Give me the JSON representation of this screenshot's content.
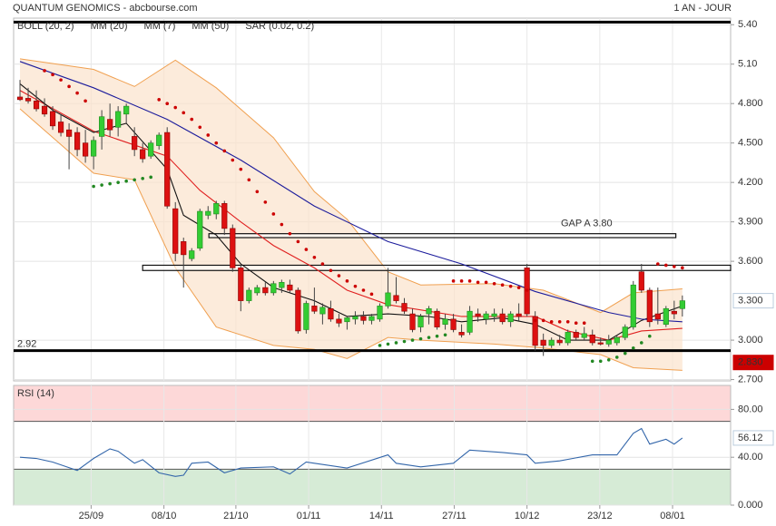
{
  "chart_data": [
    {
      "type": "candlestick",
      "title": "QUANTUM GENOMICS - abcbourse.com",
      "subtitle": "1 AN - JOUR",
      "x": [
        0,
        1,
        2,
        3,
        4,
        5,
        6,
        7,
        8,
        9,
        10,
        11,
        12,
        13,
        14,
        15,
        16,
        17,
        18,
        19,
        20,
        21,
        22,
        23,
        24,
        25,
        26,
        27,
        28,
        29,
        30,
        31,
        32,
        33,
        34,
        35,
        36,
        37,
        38,
        39,
        40,
        41,
        42,
        43,
        44,
        45,
        46,
        47,
        48,
        49,
        50,
        51,
        52,
        53,
        54,
        55,
        56,
        57,
        58,
        59,
        60,
        61,
        62,
        63,
        64,
        65,
        66,
        67,
        68,
        69,
        70,
        71,
        72,
        73,
        74,
        75,
        76,
        77,
        78,
        79,
        80,
        81
      ],
      "open": [
        4.85,
        4.84,
        4.82,
        4.78,
        4.74,
        4.66,
        4.6,
        4.58,
        4.5,
        4.4,
        4.55,
        4.68,
        4.62,
        4.72,
        4.55,
        4.45,
        4.4,
        4.48,
        4.58,
        4.0,
        3.75,
        3.62,
        3.7,
        3.95,
        3.96,
        4.04,
        3.85,
        3.55,
        3.3,
        3.36,
        3.4,
        3.36,
        3.4,
        3.42,
        3.38,
        3.08,
        3.26,
        3.2,
        3.24,
        3.16,
        3.14,
        3.16,
        3.18,
        3.15,
        3.16,
        3.26,
        3.34,
        3.28,
        3.2,
        3.1,
        3.2,
        3.22,
        3.12,
        3.16,
        3.06,
        3.06,
        3.2,
        3.16,
        3.18,
        3.2,
        3.14,
        3.2,
        3.55,
        3.18,
        3.0,
        2.96,
        3.0,
        2.98,
        3.06,
        3.02,
        3.04,
        2.98,
        2.97,
        2.98,
        3.02,
        3.1,
        3.52,
        3.38,
        3.2,
        3.12,
        3.22,
        3.24
      ],
      "high": [
        4.98,
        4.92,
        4.9,
        4.84,
        4.78,
        4.72,
        4.65,
        4.62,
        4.6,
        4.55,
        4.75,
        4.8,
        4.78,
        4.8,
        4.62,
        4.5,
        4.52,
        4.58,
        4.62,
        4.05,
        3.78,
        3.7,
        4.0,
        4.02,
        4.06,
        4.06,
        3.88,
        3.58,
        3.4,
        3.42,
        3.44,
        3.45,
        3.46,
        3.46,
        3.4,
        3.3,
        3.4,
        3.28,
        3.3,
        3.2,
        3.18,
        3.22,
        3.22,
        3.2,
        3.28,
        3.55,
        3.48,
        3.32,
        3.24,
        3.2,
        3.26,
        3.24,
        3.2,
        3.2,
        3.12,
        3.26,
        3.24,
        3.22,
        3.24,
        3.24,
        3.22,
        3.28,
        3.58,
        3.22,
        3.05,
        3.02,
        3.04,
        3.08,
        3.08,
        3.1,
        3.08,
        3.02,
        3.04,
        3.04,
        3.12,
        3.45,
        3.58,
        3.4,
        3.4,
        3.26,
        3.3,
        3.34
      ],
      "low": [
        4.82,
        4.8,
        4.74,
        4.7,
        4.6,
        4.55,
        4.3,
        4.4,
        4.35,
        4.3,
        4.45,
        4.55,
        4.55,
        4.65,
        4.4,
        4.35,
        4.38,
        4.45,
        4.0,
        3.6,
        3.4,
        3.6,
        3.68,
        3.92,
        3.92,
        3.8,
        3.52,
        3.22,
        3.28,
        3.34,
        3.34,
        3.34,
        3.36,
        3.36,
        3.05,
        3.05,
        3.2,
        3.12,
        3.14,
        3.1,
        3.08,
        3.12,
        3.12,
        3.12,
        3.14,
        3.24,
        3.28,
        3.2,
        3.06,
        3.06,
        3.12,
        3.08,
        3.08,
        3.06,
        3.02,
        3.04,
        3.14,
        3.12,
        3.14,
        3.12,
        3.1,
        3.14,
        3.18,
        2.92,
        2.88,
        2.94,
        2.96,
        2.96,
        3.0,
        3.0,
        2.96,
        2.96,
        2.95,
        2.96,
        3.0,
        3.08,
        3.36,
        3.1,
        3.12,
        3.1,
        3.16,
        3.18
      ],
      "close": [
        4.83,
        4.82,
        4.76,
        4.72,
        4.63,
        4.58,
        4.55,
        4.45,
        4.4,
        4.52,
        4.7,
        4.6,
        4.74,
        4.78,
        4.45,
        4.38,
        4.5,
        4.56,
        4.02,
        3.66,
        3.65,
        3.68,
        3.98,
        3.98,
        4.04,
        3.85,
        3.55,
        3.3,
        3.38,
        3.4,
        3.36,
        3.43,
        3.44,
        3.38,
        3.07,
        3.28,
        3.22,
        3.25,
        3.16,
        3.13,
        3.17,
        3.18,
        3.15,
        3.18,
        3.26,
        3.36,
        3.3,
        3.22,
        3.08,
        3.18,
        3.24,
        3.1,
        3.16,
        3.08,
        3.04,
        3.22,
        3.18,
        3.2,
        3.2,
        3.14,
        3.2,
        3.18,
        3.2,
        2.96,
        2.96,
        3.0,
        2.98,
        3.06,
        3.02,
        3.05,
        2.98,
        2.97,
        3.0,
        3.02,
        3.1,
        3.42,
        3.38,
        3.14,
        3.16,
        3.24,
        3.2,
        3.3
      ],
      "up_color": "#33cc33",
      "down_color": "#dd1111",
      "xlim": [
        -0.78,
        86.9
      ],
      "ylim": [
        2.69,
        5.45
      ],
      "yticks": [
        {
          "value": 5.4,
          "label": "5.40"
        },
        {
          "value": 5.1,
          "label": "5.10"
        },
        {
          "value": 4.8,
          "label": "4.800"
        },
        {
          "value": 4.5,
          "label": "4.500"
        },
        {
          "value": 4.2,
          "label": "4.200"
        },
        {
          "value": 3.9,
          "label": "3.900"
        },
        {
          "value": 3.6,
          "label": "3.600"
        },
        {
          "value": 3.0,
          "label": "3.000"
        },
        {
          "value": 2.7,
          "label": "2.700"
        }
      ],
      "grid": true,
      "overlays": [
        {
          "name": "BOLL (20, 2)",
          "color": "#f0a050",
          "fill": "#fbe3cc",
          "x": [
            0,
            9,
            14,
            19,
            24,
            31,
            36,
            40,
            45,
            49,
            58,
            64,
            71,
            75,
            81
          ],
          "upper": [
            5.14,
            5.06,
            4.93,
            5.13,
            4.92,
            4.54,
            4.13,
            3.92,
            3.52,
            3.42,
            3.43,
            3.38,
            3.21,
            3.36,
            3.39
          ],
          "lower": [
            4.76,
            4.27,
            4.22,
            3.55,
            3.1,
            2.96,
            2.93,
            2.86,
            3.02,
            3.0,
            2.97,
            2.94,
            2.89,
            2.79,
            2.77
          ]
        },
        {
          "name": "MM (20)",
          "color": "#e02020",
          "x": [
            0,
            9,
            18,
            22,
            27,
            31,
            36,
            40,
            45,
            54,
            63,
            67,
            72,
            76,
            81
          ],
          "values": [
            4.9,
            4.59,
            4.4,
            4.14,
            3.9,
            3.72,
            3.55,
            3.38,
            3.27,
            3.18,
            3.18,
            3.07,
            3.0,
            3.07,
            3.09
          ]
        },
        {
          "name": "MM (7)",
          "color": "#111111",
          "x": [
            0,
            4,
            9,
            13,
            18,
            20,
            24,
            27,
            31,
            36,
            40,
            45,
            50,
            54,
            59,
            63,
            67,
            72,
            76,
            81
          ],
          "values": [
            4.95,
            4.75,
            4.58,
            4.65,
            4.3,
            3.95,
            3.8,
            3.58,
            3.4,
            3.3,
            3.18,
            3.2,
            3.18,
            3.14,
            3.17,
            3.12,
            3.0,
            3.0,
            3.15,
            3.26
          ]
        },
        {
          "name": "MM (50)",
          "color": "#1c1c9c",
          "x": [
            0,
            9,
            18,
            27,
            36,
            45,
            54,
            63,
            72,
            76,
            81
          ],
          "values": [
            5.12,
            4.92,
            4.68,
            4.37,
            4.02,
            3.75,
            3.58,
            3.37,
            3.21,
            3.16,
            3.14
          ]
        }
      ],
      "sar": {
        "name": "SAR (0.02, 0.2)",
        "color": "#cc0000",
        "below_color": "#228822",
        "values": [
          null,
          null,
          null,
          5.05,
          5.02,
          4.98,
          4.93,
          4.88,
          4.82,
          4.17,
          4.18,
          4.19,
          4.2,
          4.21,
          4.22,
          4.23,
          4.24,
          4.83,
          4.8,
          4.77,
          4.73,
          4.68,
          4.62,
          4.56,
          4.5,
          4.44,
          4.37,
          4.3,
          4.22,
          4.13,
          4.05,
          3.96,
          3.88,
          3.81,
          3.75,
          3.69,
          3.63,
          3.58,
          3.53,
          3.49,
          3.45,
          3.41,
          3.38,
          3.35,
          2.96,
          2.97,
          2.98,
          2.99,
          3.0,
          3.01,
          3.02,
          3.03,
          3.04,
          3.45,
          3.45,
          3.45,
          3.44,
          3.44,
          3.43,
          3.42,
          3.41,
          3.4,
          3.38,
          3.15,
          3.15,
          3.14,
          3.14,
          3.14,
          3.13,
          3.13,
          2.84,
          2.84,
          2.85,
          2.87,
          2.9,
          2.94,
          2.98,
          3.03,
          3.58,
          3.57,
          3.56,
          3.55
        ]
      },
      "hlines": [
        {
          "value": 5.42
        },
        {
          "value": 2.92,
          "label": "2.92"
        }
      ],
      "gaps": [
        {
          "x": [
            23.1,
            80.2
          ],
          "y": [
            3.78,
            3.81
          ],
          "label": "GAP A 3.80"
        },
        {
          "x": [
            15.0,
            86.9
          ],
          "y": [
            3.53,
            3.57
          ]
        }
      ],
      "markers": [
        {
          "value": 3.3,
          "label": "3.300",
          "color": "#ffffff",
          "text_color": "#2266cc"
        },
        {
          "value": 2.83,
          "label": "2.830",
          "color": "#cc0000",
          "text_color": "#ffffff"
        }
      ]
    },
    {
      "type": "line",
      "title": "RSI (14)",
      "x": [
        0,
        2,
        4,
        7,
        9,
        11,
        12,
        14,
        15,
        17,
        19,
        20,
        21,
        23,
        25,
        27,
        31,
        33,
        35,
        36,
        40,
        45,
        46,
        49,
        53,
        55,
        59,
        62,
        63,
        66,
        70,
        73,
        75,
        76,
        77,
        79,
        80,
        81
      ],
      "values": [
        40,
        39,
        36,
        29,
        39,
        47,
        45,
        35,
        38,
        27,
        24,
        25,
        35,
        36,
        27,
        31,
        32,
        26,
        36,
        35,
        31,
        42,
        35,
        32,
        35,
        46,
        44,
        42,
        35,
        37,
        42,
        42,
        60,
        64,
        51,
        55,
        51,
        56.12
      ],
      "color": "#3366aa",
      "xlim": [
        -0.78,
        86.9
      ],
      "ylim": [
        0,
        100
      ],
      "yticks": [
        {
          "value": 80,
          "label": "80.00"
        },
        {
          "value": 40,
          "label": "40.00"
        },
        {
          "value": 0,
          "label": "0.000"
        }
      ],
      "xticks": [
        {
          "value": 8.7,
          "label": "25/09"
        },
        {
          "value": 17.6,
          "label": "08/10"
        },
        {
          "value": 26.4,
          "label": "21/10"
        },
        {
          "value": 35.3,
          "label": "01/11"
        },
        {
          "value": 44.2,
          "label": "14/11"
        },
        {
          "value": 53.1,
          "label": "27/11"
        },
        {
          "value": 62,
          "label": "10/12"
        },
        {
          "value": 70.9,
          "label": "23/12"
        },
        {
          "value": 79.8,
          "label": "08/01"
        }
      ],
      "zones": [
        {
          "from": 70,
          "to": 100,
          "color": "#fdd8d8"
        },
        {
          "from": 0,
          "to": 30,
          "color": "#d6ebd6"
        }
      ],
      "markers": [
        {
          "value": 56.12,
          "color": "#ffffff",
          "text_color": "#2266cc"
        }
      ]
    }
  ]
}
